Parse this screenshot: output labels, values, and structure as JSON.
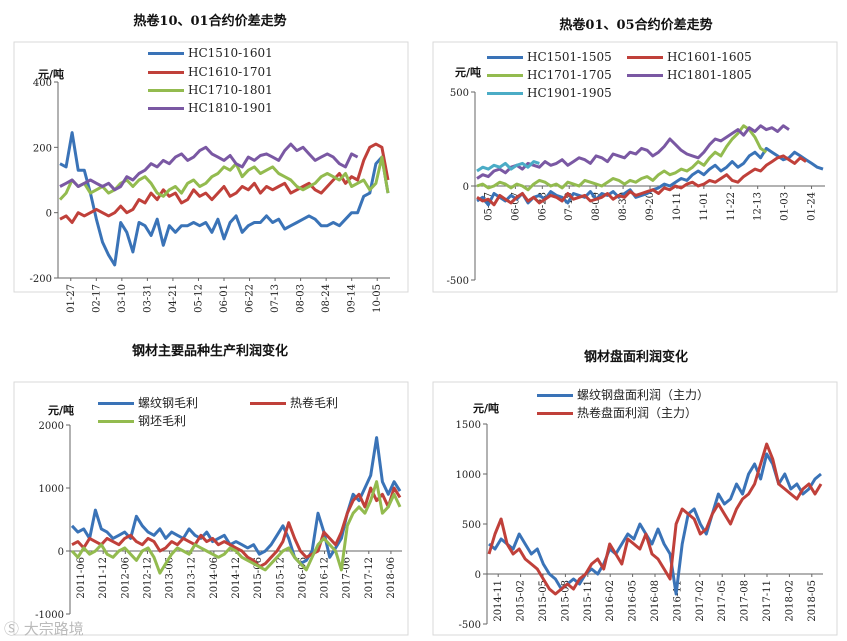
{
  "watermark": "Ⓢ 大宗路境",
  "chart_data": [
    {
      "type": "line",
      "title": "热卷10、01合约价差走势",
      "ylabel": "元/吨",
      "ylim": [
        -200,
        400
      ],
      "yticks": [
        -200,
        0,
        200,
        400
      ],
      "x_tick_labels": [
        "01-27",
        "02-17",
        "03-10",
        "03-31",
        "04-21",
        "05-12",
        "06-01",
        "06-22",
        "07-13",
        "08-03",
        "08-24",
        "09-14",
        "10-05"
      ],
      "series": [
        {
          "name": "HC1510-1601",
          "color": "#3a73b7",
          "values": [
            150,
            140,
            245,
            130,
            130,
            60,
            -20,
            -90,
            -130,
            -160,
            -30,
            -60,
            -120,
            -30,
            -40,
            -70,
            -20,
            -100,
            -40,
            -60,
            -40,
            -40,
            -30,
            -40,
            -30,
            -60,
            -20,
            -80,
            -30,
            -10,
            -60,
            -40,
            -30,
            -30,
            -10,
            -30,
            -20,
            -50,
            -40,
            -30,
            -20,
            -10,
            -20,
            -40,
            -40,
            -30,
            -40,
            -20,
            0,
            0,
            50,
            60,
            150,
            170,
            60
          ]
        },
        {
          "name": "HC1610-1701",
          "color": "#c0403a",
          "values": [
            -20,
            -10,
            -30,
            0,
            -10,
            0,
            10,
            0,
            -10,
            0,
            20,
            0,
            10,
            40,
            30,
            60,
            40,
            70,
            50,
            60,
            30,
            40,
            70,
            50,
            60,
            40,
            60,
            80,
            50,
            60,
            80,
            70,
            90,
            60,
            80,
            70,
            80,
            90,
            60,
            70,
            80,
            90,
            70,
            60,
            80,
            100,
            120,
            90,
            110,
            100,
            160,
            200,
            210,
            200,
            100
          ]
        },
        {
          "name": "HC1710-1801",
          "color": "#93bb4f",
          "values": [
            40,
            60,
            100,
            80,
            90,
            60,
            70,
            80,
            60,
            70,
            90,
            100,
            80,
            100,
            110,
            90,
            60,
            50,
            70,
            80,
            60,
            90,
            100,
            80,
            90,
            110,
            120,
            140,
            130,
            150,
            110,
            130,
            140,
            120,
            130,
            140,
            120,
            110,
            100,
            80,
            70,
            80,
            90,
            110,
            120,
            110,
            100,
            120,
            80,
            90,
            100,
            70,
            90,
            170,
            60
          ]
        },
        {
          "name": "HC1810-1901",
          "color": "#7a58a3",
          "values": [
            80,
            90,
            100,
            80,
            90,
            100,
            90,
            80,
            90,
            70,
            80,
            110,
            100,
            120,
            130,
            150,
            140,
            160,
            150,
            170,
            180,
            160,
            170,
            190,
            200,
            180,
            170,
            160,
            175,
            150,
            140,
            170,
            160,
            175,
            180,
            170,
            160,
            190,
            210,
            190,
            200,
            180,
            160,
            170,
            180,
            170,
            150,
            140,
            180,
            170
          ]
        }
      ],
      "legend": [
        "HC1510-1601",
        "HC1610-1701",
        "HC1710-1801",
        "HC1810-1901"
      ]
    },
    {
      "type": "line",
      "title": "热卷01、05合约价差走势",
      "ylabel": "元/吨",
      "ylim": [
        -500,
        500
      ],
      "yticks": [
        -500,
        0,
        500
      ],
      "x_tick_labels": [
        "05-17",
        "06-07",
        "06-28",
        "07-19",
        "08-09",
        "08-30",
        "09-20",
        "10-11",
        "11-01",
        "11-22",
        "12-13",
        "01-03",
        "01-24"
      ],
      "series": [
        {
          "name": "HC1501-1505",
          "color": "#3a73b7",
          "values": [
            -80,
            -60,
            -100,
            -40,
            -60,
            -80,
            -50,
            -70,
            -40,
            -90,
            -60,
            -50,
            -70,
            -30,
            -50,
            -60,
            -90,
            -40,
            -50,
            -60,
            -30,
            -70,
            -40,
            -50,
            -30,
            -60,
            -40,
            -20,
            -60,
            -50,
            -40,
            -20,
            -10,
            10,
            0,
            20,
            40,
            30,
            60,
            80,
            60,
            90,
            110,
            80,
            100,
            130,
            100,
            120,
            160,
            180,
            150,
            200,
            180,
            160,
            140,
            150,
            180,
            160,
            140,
            120,
            100,
            90
          ]
        },
        {
          "name": "HC1601-1605",
          "color": "#c0403a",
          "values": [
            -60,
            -80,
            -70,
            -100,
            -50,
            -70,
            -90,
            -60,
            -40,
            -80,
            -60,
            -90,
            -70,
            -50,
            -60,
            -80,
            -40,
            -70,
            -60,
            -50,
            -80,
            -70,
            -60,
            -40,
            -70,
            -50,
            -60,
            -30,
            -50,
            -40,
            -30,
            -20,
            -40,
            -10,
            -20,
            0,
            -10,
            10,
            20,
            0,
            10,
            30,
            20,
            40,
            60,
            30,
            20,
            50,
            70,
            90,
            80,
            110,
            130,
            150,
            160,
            140,
            120,
            150,
            130
          ]
        },
        {
          "name": "HC1701-1705",
          "color": "#93bb4f",
          "values": [
            0,
            10,
            -10,
            0,
            20,
            10,
            -10,
            10,
            0,
            -20,
            10,
            30,
            20,
            0,
            10,
            -10,
            20,
            10,
            0,
            30,
            20,
            10,
            0,
            20,
            40,
            30,
            10,
            30,
            20,
            40,
            50,
            30,
            60,
            80,
            60,
            70,
            90,
            80,
            100,
            130,
            110,
            150,
            180,
            160,
            210,
            250,
            280,
            320,
            300,
            260,
            200,
            180
          ]
        },
        {
          "name": "HC1801-1805",
          "color": "#7a58a3",
          "values": [
            40,
            60,
            50,
            80,
            90,
            70,
            100,
            110,
            90,
            120,
            110,
            100,
            130,
            110,
            120,
            140,
            110,
            130,
            150,
            140,
            120,
            160,
            150,
            130,
            170,
            160,
            150,
            180,
            170,
            200,
            190,
            160,
            180,
            210,
            250,
            220,
            190,
            170,
            160,
            150,
            180,
            220,
            250,
            240,
            260,
            280,
            300,
            270,
            310,
            290,
            320,
            300,
            310,
            290,
            320,
            300
          ]
        },
        {
          "name": "HC1901-1905",
          "color": "#4bacc6",
          "values": [
            80,
            100,
            90,
            110,
            100,
            120,
            90,
            110,
            120,
            100,
            130,
            120
          ]
        }
      ],
      "legend": [
        "HC1501-1505",
        "HC1601-1605",
        "HC1701-1705",
        "HC1801-1805",
        "HC1901-1905"
      ]
    },
    {
      "type": "line",
      "title": "钢材主要品种生产利润变化",
      "ylabel": "元/吨",
      "ylim": [
        -1000,
        2000
      ],
      "yticks": [
        -1000,
        0,
        1000,
        2000
      ],
      "x_tick_labels": [
        "2011-06",
        "2011-12",
        "2012-06",
        "2012-12",
        "2013-06",
        "2013-12",
        "2014-06",
        "2014-12",
        "2015-06",
        "2015-12",
        "2016-06",
        "2016-12",
        "2017-06",
        "2017-12",
        "2018-06"
      ],
      "series": [
        {
          "name": "螺纹钢毛利",
          "color": "#3a73b7",
          "values": [
            400,
            300,
            350,
            200,
            650,
            350,
            300,
            200,
            250,
            300,
            200,
            550,
            400,
            300,
            250,
            350,
            200,
            300,
            250,
            200,
            350,
            250,
            200,
            300,
            150,
            200,
            250,
            100,
            150,
            100,
            50,
            100,
            -50,
            0,
            100,
            250,
            400,
            200,
            -100,
            -200,
            -150,
            0,
            600,
            300,
            -100,
            50,
            200,
            600,
            900,
            800,
            1000,
            1200,
            1800,
            1100,
            900,
            1100,
            950
          ]
        },
        {
          "name": "热卷毛利",
          "color": "#c0403a",
          "values": [
            100,
            150,
            50,
            200,
            150,
            100,
            200,
            150,
            100,
            200,
            250,
            150,
            100,
            200,
            150,
            0,
            50,
            150,
            100,
            200,
            150,
            100,
            250,
            150,
            200,
            100,
            150,
            100,
            50,
            0,
            -100,
            -150,
            -250,
            -200,
            -100,
            0,
            150,
            450,
            200,
            0,
            -100,
            -50,
            0,
            300,
            200,
            100,
            300,
            600,
            800,
            900,
            700,
            1000,
            800,
            900,
            700,
            1000,
            850
          ]
        },
        {
          "name": "钢坯毛利",
          "color": "#93bb4f",
          "values": [
            0,
            -100,
            50,
            -50,
            0,
            100,
            -50,
            -100,
            0,
            50,
            -50,
            -150,
            0,
            50,
            -100,
            -350,
            -200,
            -50,
            50,
            0,
            -50,
            100,
            50,
            0,
            -50,
            -100,
            -50,
            50,
            0,
            -100,
            -150,
            -200,
            -250,
            -300,
            -200,
            -100,
            0,
            50,
            -100,
            -200,
            -300,
            -100,
            100,
            200,
            100,
            0,
            -300,
            400,
            600,
            700,
            600,
            800,
            1100,
            600,
            700,
            900,
            700
          ]
        }
      ],
      "legend": [
        "螺纹钢毛利",
        "热卷毛利",
        "钢坯毛利"
      ]
    },
    {
      "type": "line",
      "title": "钢材盘面利润变化",
      "ylabel": "元/吨",
      "ylim": [
        -500,
        1500
      ],
      "yticks": [
        -500,
        0,
        500,
        1000,
        1500
      ],
      "x_tick_labels": [
        "2014-11",
        "2015-02",
        "2015-05",
        "2015-08",
        "2015-11",
        "2016-02",
        "2016-05",
        "2016-08",
        "2016-11",
        "2017-02",
        "2017-05",
        "2017-08",
        "2017-11",
        "2018-02",
        "2018-05"
      ],
      "series": [
        {
          "name": "螺纹钢盘面利润（主力）",
          "color": "#3a73b7",
          "values": [
            300,
            250,
            350,
            300,
            250,
            400,
            300,
            200,
            250,
            100,
            0,
            -50,
            -150,
            -100,
            -50,
            -100,
            0,
            50,
            0,
            100,
            250,
            200,
            300,
            400,
            350,
            500,
            400,
            300,
            450,
            300,
            200,
            -200,
            300,
            600,
            650,
            500,
            400,
            600,
            800,
            700,
            750,
            900,
            800,
            1000,
            1100,
            950,
            1200,
            1100,
            900,
            1000,
            850,
            900,
            800,
            850,
            950,
            1000
          ]
        },
        {
          "name": "热卷盘面利润（主力）",
          "color": "#c0403a",
          "values": [
            200,
            400,
            550,
            300,
            200,
            250,
            150,
            100,
            50,
            -50,
            -150,
            -200,
            -150,
            -100,
            -150,
            -50,
            0,
            100,
            150,
            50,
            300,
            200,
            100,
            350,
            300,
            250,
            400,
            200,
            150,
            50,
            -50,
            500,
            650,
            600,
            550,
            400,
            450,
            600,
            700,
            600,
            500,
            650,
            750,
            800,
            900,
            1100,
            1300,
            1150,
            900,
            850,
            800,
            750,
            850,
            900,
            800,
            900
          ]
        }
      ],
      "legend": [
        "螺纹钢盘面利润（主力）",
        "热卷盘面利润（主力）"
      ]
    }
  ]
}
